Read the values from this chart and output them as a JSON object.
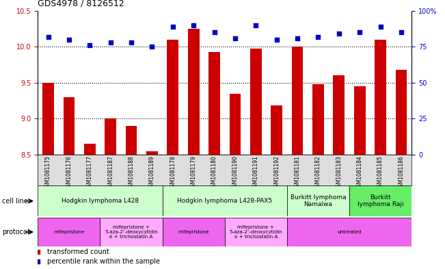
{
  "title": "GDS4978 / 8126512",
  "samples": [
    "GSM1081175",
    "GSM1081176",
    "GSM1081177",
    "GSM1081187",
    "GSM1081188",
    "GSM1081189",
    "GSM1081178",
    "GSM1081179",
    "GSM1081180",
    "GSM1081190",
    "GSM1081191",
    "GSM1081192",
    "GSM1081181",
    "GSM1081182",
    "GSM1081183",
    "GSM1081184",
    "GSM1081185",
    "GSM1081186"
  ],
  "red_values": [
    9.5,
    9.3,
    8.65,
    9.0,
    8.9,
    8.55,
    10.1,
    10.25,
    9.93,
    9.35,
    9.97,
    9.18,
    10.0,
    9.48,
    9.6,
    9.45,
    10.1,
    9.68
  ],
  "blue_percentiles": [
    82,
    80,
    76,
    78,
    78,
    75,
    89,
    90,
    85,
    81,
    90,
    80,
    81,
    82,
    84,
    85,
    89,
    85
  ],
  "ylim_left": [
    8.5,
    10.5
  ],
  "ylim_right": [
    0,
    100
  ],
  "yticks_left": [
    8.5,
    9.0,
    9.5,
    10.0,
    10.5
  ],
  "yticks_right": [
    0,
    25,
    50,
    75,
    100
  ],
  "bar_color": "#cc0000",
  "dot_color": "#0000cc",
  "bar_bottom": 8.5,
  "cell_line_groups": [
    {
      "label": "Hodgkin lymphoma L428",
      "start": 0,
      "end": 6,
      "color": "#ccffcc"
    },
    {
      "label": "Hodgkin lymphoma L428-PAX5",
      "start": 6,
      "end": 12,
      "color": "#ccffcc"
    },
    {
      "label": "Burkitt lymphoma\nNamalwa",
      "start": 12,
      "end": 15,
      "color": "#ccffcc"
    },
    {
      "label": "Burkitt\nlymphoma Raji",
      "start": 15,
      "end": 18,
      "color": "#66ee66"
    }
  ],
  "protocol_groups": [
    {
      "label": "mifepristone",
      "start": 0,
      "end": 3,
      "color": "#ee66ee"
    },
    {
      "label": "mifepristone +\n5-aza-2'-deoxycytidin\ne + trichostatin A",
      "start": 3,
      "end": 6,
      "color": "#ffaaff"
    },
    {
      "label": "mifepristone",
      "start": 6,
      "end": 9,
      "color": "#ee66ee"
    },
    {
      "label": "mifepristone +\n5-aza-2'-deoxycytidin\ne + trichostatin A",
      "start": 9,
      "end": 12,
      "color": "#ffaaff"
    },
    {
      "label": "untreated",
      "start": 12,
      "end": 18,
      "color": "#ee66ee"
    }
  ],
  "legend_red": "transformed count",
  "legend_blue": "percentile rank within the sample",
  "label_cell_line": "cell line",
  "label_protocol": "protocol",
  "bg_color": "#ffffff",
  "tick_label_bg": "#dddddd"
}
